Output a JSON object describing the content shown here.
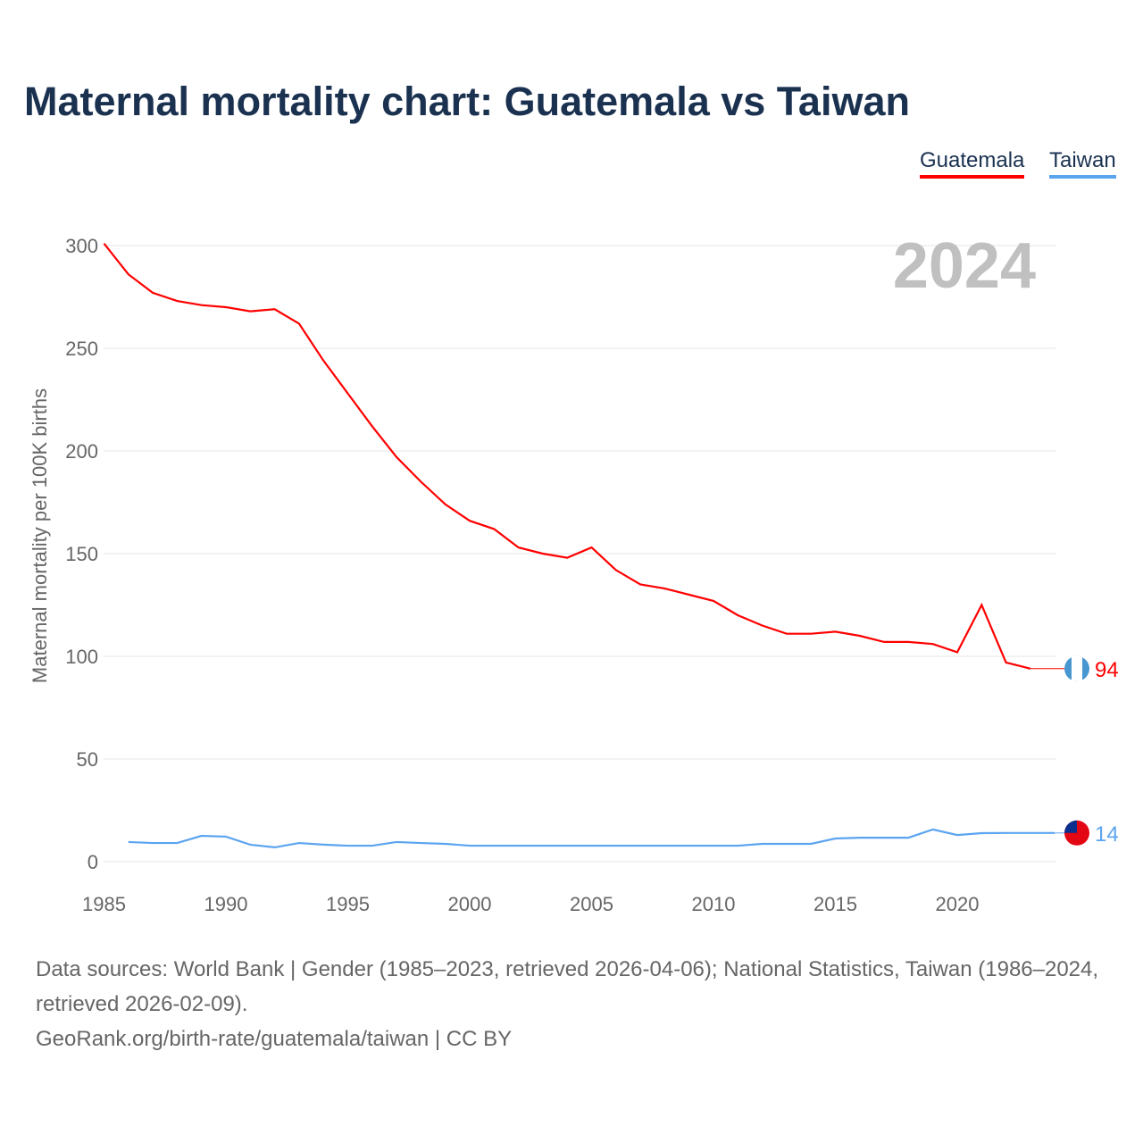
{
  "title": "Maternal mortality chart: Guatemala vs Taiwan",
  "footer": {
    "line1": "Data sources: World Bank | Gender (1985–2023, retrieved 2026-04-06); National Statistics, Taiwan (1986–2024, retrieved 2026-02-09).",
    "line2": "GeoRank.org/birth-rate/guatemala/taiwan | CC BY"
  },
  "chart_data": {
    "type": "line",
    "title": "Maternal mortality chart: Guatemala vs Taiwan",
    "ylabel": "Maternal mortality per 100K births",
    "xlabel": "",
    "year_label": "2024",
    "xlim": [
      1985,
      2024
    ],
    "ylim": [
      0,
      300
    ],
    "xticks": [
      1985,
      1990,
      1995,
      2000,
      2005,
      2010,
      2015,
      2020
    ],
    "yticks": [
      0,
      50,
      100,
      150,
      200,
      250,
      300
    ],
    "grid": true,
    "legend": "top-right",
    "series": [
      {
        "name": "Guatemala",
        "color": "#ff0000",
        "end_label": "94",
        "start": 1985,
        "values": [
          301,
          286,
          277,
          273,
          271,
          270,
          268,
          269,
          262,
          244,
          228,
          212,
          197,
          185,
          174,
          166,
          162,
          153,
          150,
          148,
          153,
          142,
          135,
          133,
          130,
          127,
          120,
          115,
          111,
          111,
          112,
          110,
          107,
          107,
          106,
          102,
          125,
          97,
          94
        ]
      },
      {
        "name": "Taiwan",
        "color": "#5ba4f0",
        "end_label": "14",
        "start": 1986,
        "values": [
          9.6,
          9.1,
          9.1,
          12.6,
          12.2,
          8.3,
          7.0,
          9.1,
          8.3,
          7.8,
          7.8,
          9.6,
          9.1,
          8.7,
          7.8,
          7.8,
          7.8,
          7.8,
          7.8,
          7.8,
          7.8,
          7.8,
          7.8,
          7.8,
          7.8,
          7.8,
          8.7,
          8.7,
          8.7,
          11.3,
          11.7,
          11.7,
          11.7,
          15.7,
          13,
          13.9,
          14,
          14,
          14
        ]
      }
    ]
  }
}
